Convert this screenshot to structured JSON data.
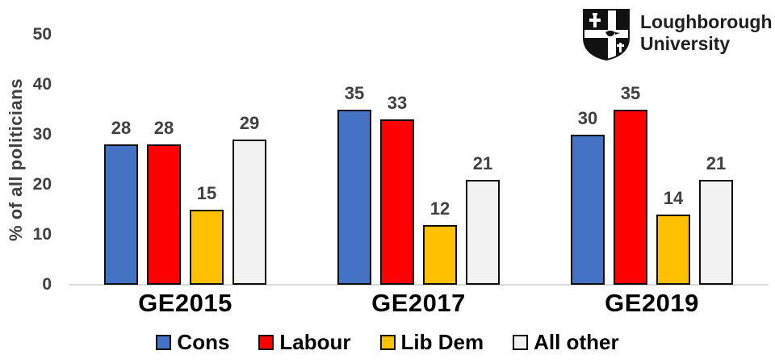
{
  "chart_data": {
    "type": "bar",
    "categories": [
      "GE2015",
      "GE2017",
      "GE2019"
    ],
    "series": [
      {
        "name": "Cons",
        "color": "#4472C4",
        "values": [
          28,
          35,
          30
        ]
      },
      {
        "name": "Labour",
        "color": "#FF0000",
        "values": [
          28,
          33,
          35
        ]
      },
      {
        "name": "Lib Dem",
        "color": "#FFC000",
        "values": [
          15,
          12,
          14
        ]
      },
      {
        "name": "All other",
        "color": "#F2F2F2",
        "values": [
          29,
          21,
          21
        ]
      }
    ],
    "title": "",
    "xlabel": "",
    "ylabel": "% of all politicians",
    "yticks": [
      0,
      10,
      20,
      30,
      40,
      50
    ],
    "ylim": [
      0,
      50
    ],
    "grid": false,
    "legend_position": "bottom",
    "bar_labels": true
  },
  "colors": {
    "axis_text": "#404040",
    "bar_border": "#0d0d0d",
    "baseline": "#d9d9d9",
    "category_text": "#000000"
  },
  "logo": {
    "line1": "Loughborough",
    "line2": "University"
  }
}
